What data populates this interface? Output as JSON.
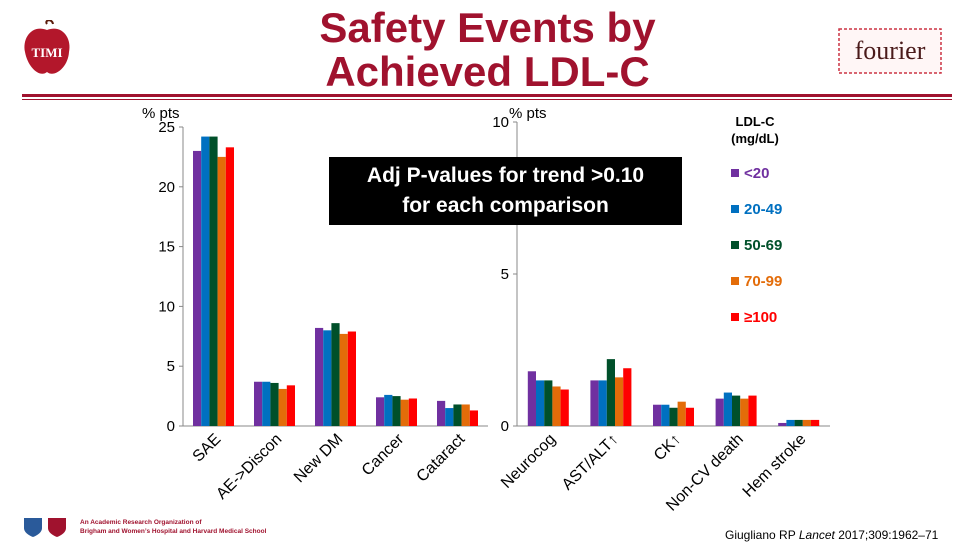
{
  "header": {
    "title_line1": "Safety Events by",
    "title_line2": "Achieved LDL-C",
    "logo_left_text": "TIMI",
    "logo_right_text": "fourier"
  },
  "colors": {
    "title": "#a0122e",
    "series": [
      "#7030a0",
      "#0070c0",
      "#00502a",
      "#e36c09",
      "#ff0000"
    ]
  },
  "callout": {
    "line1": "Adj P-values for trend >0.10",
    "line2": "for each comparison"
  },
  "legend": {
    "title_line1": "LDL-C",
    "title_line2": "(mg/dL)"
  },
  "footer": {
    "org_line1": "An Academic Research Organization of",
    "org_line2": "Brigham and Women’s Hospital and Harvard Medical School",
    "citation_author": "Giugliano RP",
    "citation_journal": "Lancet",
    "citation_rest": " 2017;309:1962–71"
  },
  "chart_data": [
    {
      "type": "bar",
      "ylabel": "% pts",
      "ylim": [
        0,
        25
      ],
      "yticks": [
        0,
        5,
        10,
        15,
        20,
        25
      ],
      "grid": false,
      "categories": [
        "SAE",
        "AE->Discon",
        "New DM",
        "Cancer",
        "Cataract"
      ],
      "series": [
        {
          "name": "<20",
          "values": [
            23.0,
            3.7,
            8.2,
            2.4,
            2.1
          ]
        },
        {
          "name": "20-49",
          "values": [
            24.2,
            3.7,
            8.0,
            2.6,
            1.5
          ]
        },
        {
          "name": "50-69",
          "values": [
            24.2,
            3.6,
            8.6,
            2.5,
            1.8
          ]
        },
        {
          "name": "70-99",
          "values": [
            22.5,
            3.1,
            7.7,
            2.2,
            1.8
          ]
        },
        {
          "name": "≥100",
          "values": [
            23.3,
            3.4,
            7.9,
            2.3,
            1.3
          ]
        }
      ]
    },
    {
      "type": "bar",
      "ylabel": "% pts",
      "ylim": [
        0,
        10
      ],
      "yticks": [
        0,
        5,
        10
      ],
      "grid": false,
      "legend_position": "right",
      "categories": [
        "Neurocog",
        "AST/ALT↑",
        "CK↑",
        "Non-CV death",
        "Hem stroke"
      ],
      "series": [
        {
          "name": "<20",
          "values": [
            1.8,
            1.5,
            0.7,
            0.9,
            0.1
          ]
        },
        {
          "name": "20-49",
          "values": [
            1.5,
            1.5,
            0.7,
            1.1,
            0.2
          ]
        },
        {
          "name": "50-69",
          "values": [
            1.5,
            2.2,
            0.6,
            1.0,
            0.2
          ]
        },
        {
          "name": "70-99",
          "values": [
            1.3,
            1.6,
            0.8,
            0.9,
            0.2
          ]
        },
        {
          "name": "≥100",
          "values": [
            1.2,
            1.9,
            0.6,
            1.0,
            0.2
          ]
        }
      ]
    }
  ]
}
